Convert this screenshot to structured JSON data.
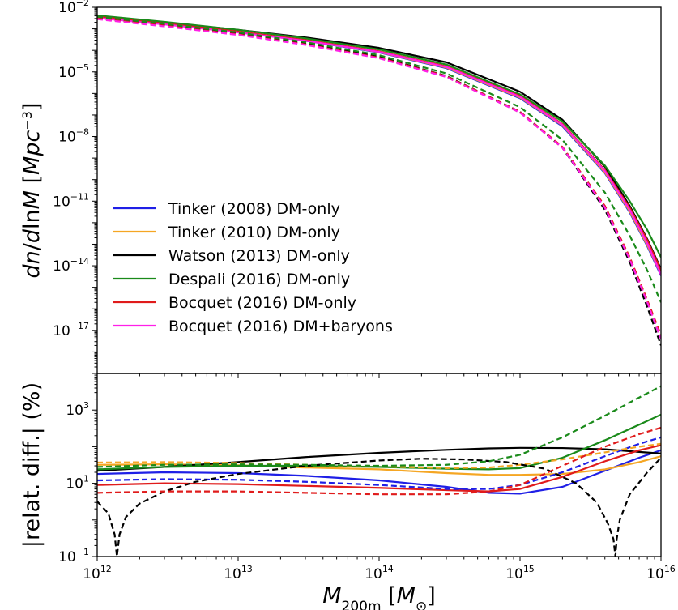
{
  "colors": {
    "tinker2008": "#1f1fe6",
    "tinker2010": "#f5a623",
    "watson2013": "#000000",
    "despali2016": "#1a8a1a",
    "bocquet2016": "#e01b1b",
    "bocquet2016_baryons": "#ff1fe8"
  },
  "chart_data": [
    {
      "type": "line",
      "panel": "top",
      "ylabel": "dn/dlnM [Mpc^-3]",
      "xscale": "log",
      "yscale": "log",
      "xlim": [
        1000000000000.0,
        1e+16
      ],
      "ylim": [
        1e-19,
        0.01
      ],
      "x_ticks": [
        {
          "base": "10",
          "exp": "12",
          "value": 1000000000000.0
        },
        {
          "base": "10",
          "exp": "13",
          "value": 10000000000000.0
        },
        {
          "base": "10",
          "exp": "14",
          "value": 100000000000000.0
        },
        {
          "base": "10",
          "exp": "15",
          "value": 1000000000000000.0
        },
        {
          "base": "10",
          "exp": "16",
          "value": 1e+16
        }
      ],
      "y_ticks": [
        {
          "base": "10",
          "exp": "−2",
          "value": 0.01
        },
        {
          "base": "10",
          "exp": "−5",
          "value": 1e-05
        },
        {
          "base": "10",
          "exp": "−8",
          "value": 1e-08
        },
        {
          "base": "10",
          "exp": "−11",
          "value": 1e-11
        },
        {
          "base": "10",
          "exp": "−14",
          "value": 1e-14
        },
        {
          "base": "10",
          "exp": "−17",
          "value": 1e-17
        }
      ],
      "legend": {
        "placement": "lower-left",
        "entries": [
          {
            "label": "Tinker (2008) DM-only",
            "color_key": "tinker2008"
          },
          {
            "label": "Tinker (2010) DM-only",
            "color_key": "tinker2010"
          },
          {
            "label": "Watson (2013) DM-only",
            "color_key": "watson2013"
          },
          {
            "label": "Despali (2016) DM-only",
            "color_key": "despali2016"
          },
          {
            "label": "Bocquet (2016) DM-only",
            "color_key": "bocquet2016"
          },
          {
            "label": "Bocquet (2016) DM+baryons",
            "color_key": "bocquet2016_baryons"
          }
        ]
      },
      "x": [
        1000000000000.0,
        3000000000000.0,
        10000000000000.0,
        30000000000000.0,
        100000000000000.0,
        300000000000000.0,
        1000000000000000.0,
        2000000000000000.0,
        4000000000000000.0,
        6000000000000000.0,
        8000000000000000.0,
        1e+16
      ],
      "series": [
        {
          "color_key": "tinker2008",
          "style": "solid",
          "y": [
            0.0035,
            0.0017,
            0.0007,
            0.00028,
            8e-05,
            1.5e-05,
            6e-07,
            3e-08,
            2e-10,
            3e-12,
            8e-14,
            3.5e-15
          ]
        },
        {
          "color_key": "tinker2010",
          "style": "solid",
          "y": [
            0.0036,
            0.00175,
            0.00073,
            0.00029,
            8.3e-05,
            1.6e-05,
            6.5e-07,
            3.3e-08,
            2.2e-10,
            3.4e-12,
            9e-14,
            4e-15
          ]
        },
        {
          "color_key": "watson2013",
          "style": "solid",
          "y": [
            0.004,
            0.002,
            0.0009,
            0.0004,
            0.00013,
            2.8e-05,
            1.2e-06,
            6e-08,
            4e-10,
            6e-12,
            1.7e-13,
            7e-15
          ]
        },
        {
          "color_key": "despali2016",
          "style": "solid",
          "y": [
            0.0042,
            0.0021,
            0.0009,
            0.00036,
            0.00011,
            2.2e-05,
            9e-07,
            5e-08,
            4.5e-10,
            1e-11,
            4.5e-13,
            2.5e-14
          ]
        },
        {
          "color_key": "bocquet2016",
          "style": "solid",
          "y": [
            0.0036,
            0.00175,
            0.00075,
            0.0003,
            9e-05,
            1.8e-05,
            7.5e-07,
            3.8e-08,
            2.8e-10,
            5e-12,
            1.5e-13,
            6e-15
          ]
        },
        {
          "color_key": "bocquet2016_baryons",
          "style": "solid",
          "y": [
            0.0032,
            0.0016,
            0.00068,
            0.00028,
            8.5e-05,
            1.7e-05,
            7e-07,
            3.5e-08,
            2.5e-10,
            4e-12,
            1.1e-13,
            4e-15
          ]
        },
        {
          "color_key": "tinker2008",
          "style": "dashed",
          "y": [
            0.003,
            0.0014,
            0.00055,
            0.00019,
            4.5e-05,
            6e-06,
            1.3e-07,
            3e-09,
            5e-12,
            2e-14,
            2e-16,
            4e-18
          ]
        },
        {
          "color_key": "tinker2010",
          "style": "dashed",
          "y": [
            0.003,
            0.0014,
            0.00055,
            0.00019,
            4.5e-05,
            6e-06,
            1.3e-07,
            3e-09,
            5e-12,
            2e-14,
            2e-16,
            4e-18
          ]
        },
        {
          "color_key": "watson2013",
          "style": "dashed",
          "y": [
            0.0033,
            0.0015,
            0.0006,
            0.00021,
            5e-05,
            6.5e-06,
            1.4e-07,
            3e-09,
            4e-12,
            1.5e-14,
            1.2e-16,
            2e-18
          ]
        },
        {
          "color_key": "despali2016",
          "style": "dashed",
          "y": [
            0.0036,
            0.0017,
            0.00068,
            0.00024,
            6e-05,
            8.5e-06,
            2.3e-07,
            7e-09,
            2.5e-11,
            2.5e-13,
            6e-15,
            2e-16
          ]
        },
        {
          "color_key": "bocquet2016",
          "style": "dashed",
          "y": [
            0.003,
            0.0014,
            0.00055,
            0.00019,
            4.6e-05,
            6.3e-06,
            1.4e-07,
            3.3e-09,
            6e-12,
            2.5e-14,
            2.5e-16,
            6e-18
          ]
        },
        {
          "color_key": "bocquet2016_baryons",
          "style": "dashed",
          "y": [
            0.0028,
            0.0013,
            0.00052,
            0.00018,
            4.3e-05,
            5.8e-06,
            1.3e-07,
            3e-09,
            5e-12,
            2e-14,
            2e-16,
            4e-18
          ]
        }
      ]
    },
    {
      "type": "line",
      "panel": "bottom",
      "ylabel": "|relat. diff.| (%)",
      "xlabel": "M_200m [M_⊙]",
      "xscale": "log",
      "yscale": "log",
      "xlim": [
        1000000000000.0,
        1e+16
      ],
      "ylim": [
        0.1,
        10000
      ],
      "x_ticks": [
        {
          "base": "10",
          "exp": "12",
          "value": 1000000000000.0
        },
        {
          "base": "10",
          "exp": "13",
          "value": 10000000000000.0
        },
        {
          "base": "10",
          "exp": "14",
          "value": 100000000000000.0
        },
        {
          "base": "10",
          "exp": "15",
          "value": 1000000000000000.0
        },
        {
          "base": "10",
          "exp": "16",
          "value": 1e+16
        }
      ],
      "y_ticks": [
        {
          "base": "10",
          "exp": "−1",
          "value": 0.1
        },
        {
          "base": "10",
          "exp": "1",
          "value": 10
        },
        {
          "base": "10",
          "exp": "3",
          "value": 1000
        }
      ],
      "series": [
        {
          "color_key": "tinker2008",
          "style": "solid",
          "x": [
            1000000000000.0,
            3000000000000.0,
            10000000000000.0,
            30000000000000.0,
            100000000000000.0,
            300000000000000.0,
            600000000000000.0,
            1000000000000000.0,
            2000000000000000.0,
            4000000000000000.0,
            7000000000000000.0,
            1e+16
          ],
          "y": [
            18,
            20,
            19,
            16,
            12,
            8,
            5.5,
            5.2,
            8,
            22,
            50,
            80
          ]
        },
        {
          "color_key": "tinker2010",
          "style": "solid",
          "x": [
            1000000000000.0,
            3000000000000.0,
            10000000000000.0,
            30000000000000.0,
            100000000000000.0,
            300000000000000.0,
            600000000000000.0,
            1000000000000000.0,
            2000000000000000.0,
            4000000000000000.0,
            7000000000000000.0,
            1e+16
          ],
          "y": [
            32,
            33,
            31,
            27,
            24,
            19,
            17,
            17,
            18,
            24,
            38,
            55
          ]
        },
        {
          "color_key": "watson2013",
          "style": "solid",
          "x": [
            1000000000000.0,
            3000000000000.0,
            10000000000000.0,
            30000000000000.0,
            100000000000000.0,
            300000000000000.0,
            600000000000000.0,
            1000000000000000.0,
            2000000000000000.0,
            4000000000000000.0,
            7000000000000000.0,
            1e+16
          ],
          "y": [
            22,
            28,
            38,
            52,
            68,
            82,
            90,
            93,
            92,
            85,
            72,
            65
          ]
        },
        {
          "color_key": "despali2016",
          "style": "solid",
          "x": [
            1000000000000.0,
            3000000000000.0,
            10000000000000.0,
            30000000000000.0,
            100000000000000.0,
            300000000000000.0,
            600000000000000.0,
            1000000000000000.0,
            2000000000000000.0,
            4000000000000000.0,
            7000000000000000.0,
            1e+16
          ],
          "y": [
            24,
            28,
            30,
            30,
            28,
            25,
            24,
            26,
            50,
            150,
            400,
            750
          ]
        },
        {
          "color_key": "bocquet2016",
          "style": "solid",
          "x": [
            1000000000000.0,
            3000000000000.0,
            10000000000000.0,
            30000000000000.0,
            100000000000000.0,
            300000000000000.0,
            600000000000000.0,
            1000000000000000.0,
            2000000000000000.0,
            4000000000000000.0,
            7000000000000000.0,
            1e+16
          ],
          "y": [
            9,
            10,
            9.5,
            8.5,
            7.5,
            6.5,
            6,
            7,
            15,
            40,
            80,
            110
          ]
        },
        {
          "color_key": "tinker2008",
          "style": "dashed",
          "x": [
            1000000000000.0,
            3000000000000.0,
            10000000000000.0,
            30000000000000.0,
            100000000000000.0,
            300000000000000.0,
            600000000000000.0,
            1000000000000000.0,
            2000000000000000.0,
            4000000000000000.0,
            7000000000000000.0,
            1e+16
          ],
          "y": [
            12,
            13,
            12.5,
            11,
            9,
            7,
            7,
            9,
            20,
            55,
            120,
            180
          ]
        },
        {
          "color_key": "tinker2010",
          "style": "dashed",
          "x": [
            1000000000000.0,
            3000000000000.0,
            10000000000000.0,
            30000000000000.0,
            100000000000000.0,
            300000000000000.0,
            600000000000000.0,
            1000000000000000.0,
            2000000000000000.0,
            4000000000000000.0,
            7000000000000000.0,
            1e+16
          ],
          "y": [
            37,
            38,
            36,
            32,
            29,
            26,
            27,
            32,
            45,
            70,
            100,
            120
          ]
        },
        {
          "color_key": "watson2013",
          "style": "dashed",
          "x": [
            1000000000000.0,
            1200000000000.0,
            1330000000000.0,
            1380000000000.0,
            1440000000000.0,
            1600000000000.0,
            2000000000000.0,
            3000000000000.0,
            5000000000000.0,
            10000000000000.0,
            30000000000000.0,
            100000000000000.0,
            200000000000000.0,
            400000000000000.0,
            800000000000000.0,
            1500000000000000.0,
            2500000000000000.0,
            3500000000000000.0,
            4200000000000000.0,
            4600000000000000.0,
            4750000000000000.0,
            4850000000000000.0,
            5100000000000000.0,
            6000000000000000.0,
            8000000000000000.0,
            1e+16
          ],
          "y": [
            3.2,
            1.5,
            0.4,
            0.1,
            0.4,
            1.2,
            2.8,
            6,
            11,
            18,
            30,
            42,
            47,
            45,
            38,
            25,
            10,
            3,
            0.8,
            0.3,
            0.1,
            0.3,
            1,
            5,
            20,
            50
          ]
        },
        {
          "color_key": "despali2016",
          "style": "dashed",
          "x": [
            1000000000000.0,
            3000000000000.0,
            10000000000000.0,
            30000000000000.0,
            100000000000000.0,
            300000000000000.0,
            600000000000000.0,
            1000000000000000.0,
            2000000000000000.0,
            4000000000000000.0,
            7000000000000000.0,
            1e+16
          ],
          "y": [
            28,
            32,
            33,
            32,
            30,
            32,
            40,
            60,
            180,
            700,
            2200,
            4500
          ]
        },
        {
          "color_key": "bocquet2016",
          "style": "dashed",
          "x": [
            1000000000000.0,
            3000000000000.0,
            10000000000000.0,
            30000000000000.0,
            100000000000000.0,
            300000000000000.0,
            600000000000000.0,
            1000000000000000.0,
            2000000000000000.0,
            4000000000000000.0,
            7000000000000000.0,
            1e+16
          ],
          "y": [
            5.5,
            6,
            6,
            5.5,
            5,
            5,
            6,
            9,
            30,
            100,
            220,
            330
          ]
        }
      ]
    }
  ]
}
